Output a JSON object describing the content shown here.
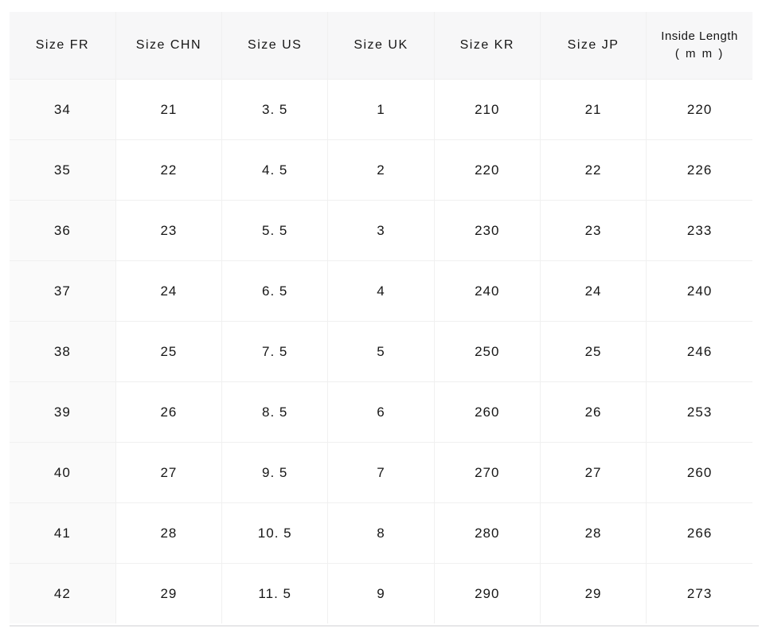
{
  "style": {
    "page_background": "#ffffff",
    "header_background": "#f7f7f8",
    "first_column_background": "#fafafa",
    "cell_background": "#ffffff",
    "border_color": "#f0f0f0",
    "bottom_rule_color": "#e7e7e9",
    "text_color": "#161616"
  },
  "chart_data": {
    "type": "table",
    "columns": [
      {
        "label": "Size FR"
      },
      {
        "label": "Size CHN"
      },
      {
        "label": "Size US"
      },
      {
        "label": "Size UK"
      },
      {
        "label": "Size KR"
      },
      {
        "label": "Size JP"
      },
      {
        "label": "Inside Length",
        "sub": "( m m )"
      }
    ],
    "rows": [
      {
        "cells": [
          "34",
          "21",
          "3. 5",
          "1",
          "210",
          "21",
          "220"
        ]
      },
      {
        "cells": [
          "35",
          "22",
          "4. 5",
          "2",
          "220",
          "22",
          "226"
        ]
      },
      {
        "cells": [
          "36",
          "23",
          "5. 5",
          "3",
          "230",
          "23",
          "233"
        ]
      },
      {
        "cells": [
          "37",
          "24",
          "6. 5",
          "4",
          "240",
          "24",
          "240"
        ]
      },
      {
        "cells": [
          "38",
          "25",
          "7. 5",
          "5",
          "250",
          "25",
          "246"
        ]
      },
      {
        "cells": [
          "39",
          "26",
          "8. 5",
          "6",
          "260",
          "26",
          "253"
        ]
      },
      {
        "cells": [
          "40",
          "27",
          "9. 5",
          "7",
          "270",
          "27",
          "260"
        ]
      },
      {
        "cells": [
          "41",
          "28",
          "10. 5",
          "8",
          "280",
          "28",
          "266"
        ]
      },
      {
        "cells": [
          "42",
          "29",
          "11. 5",
          "9",
          "290",
          "29",
          "273"
        ]
      }
    ]
  }
}
